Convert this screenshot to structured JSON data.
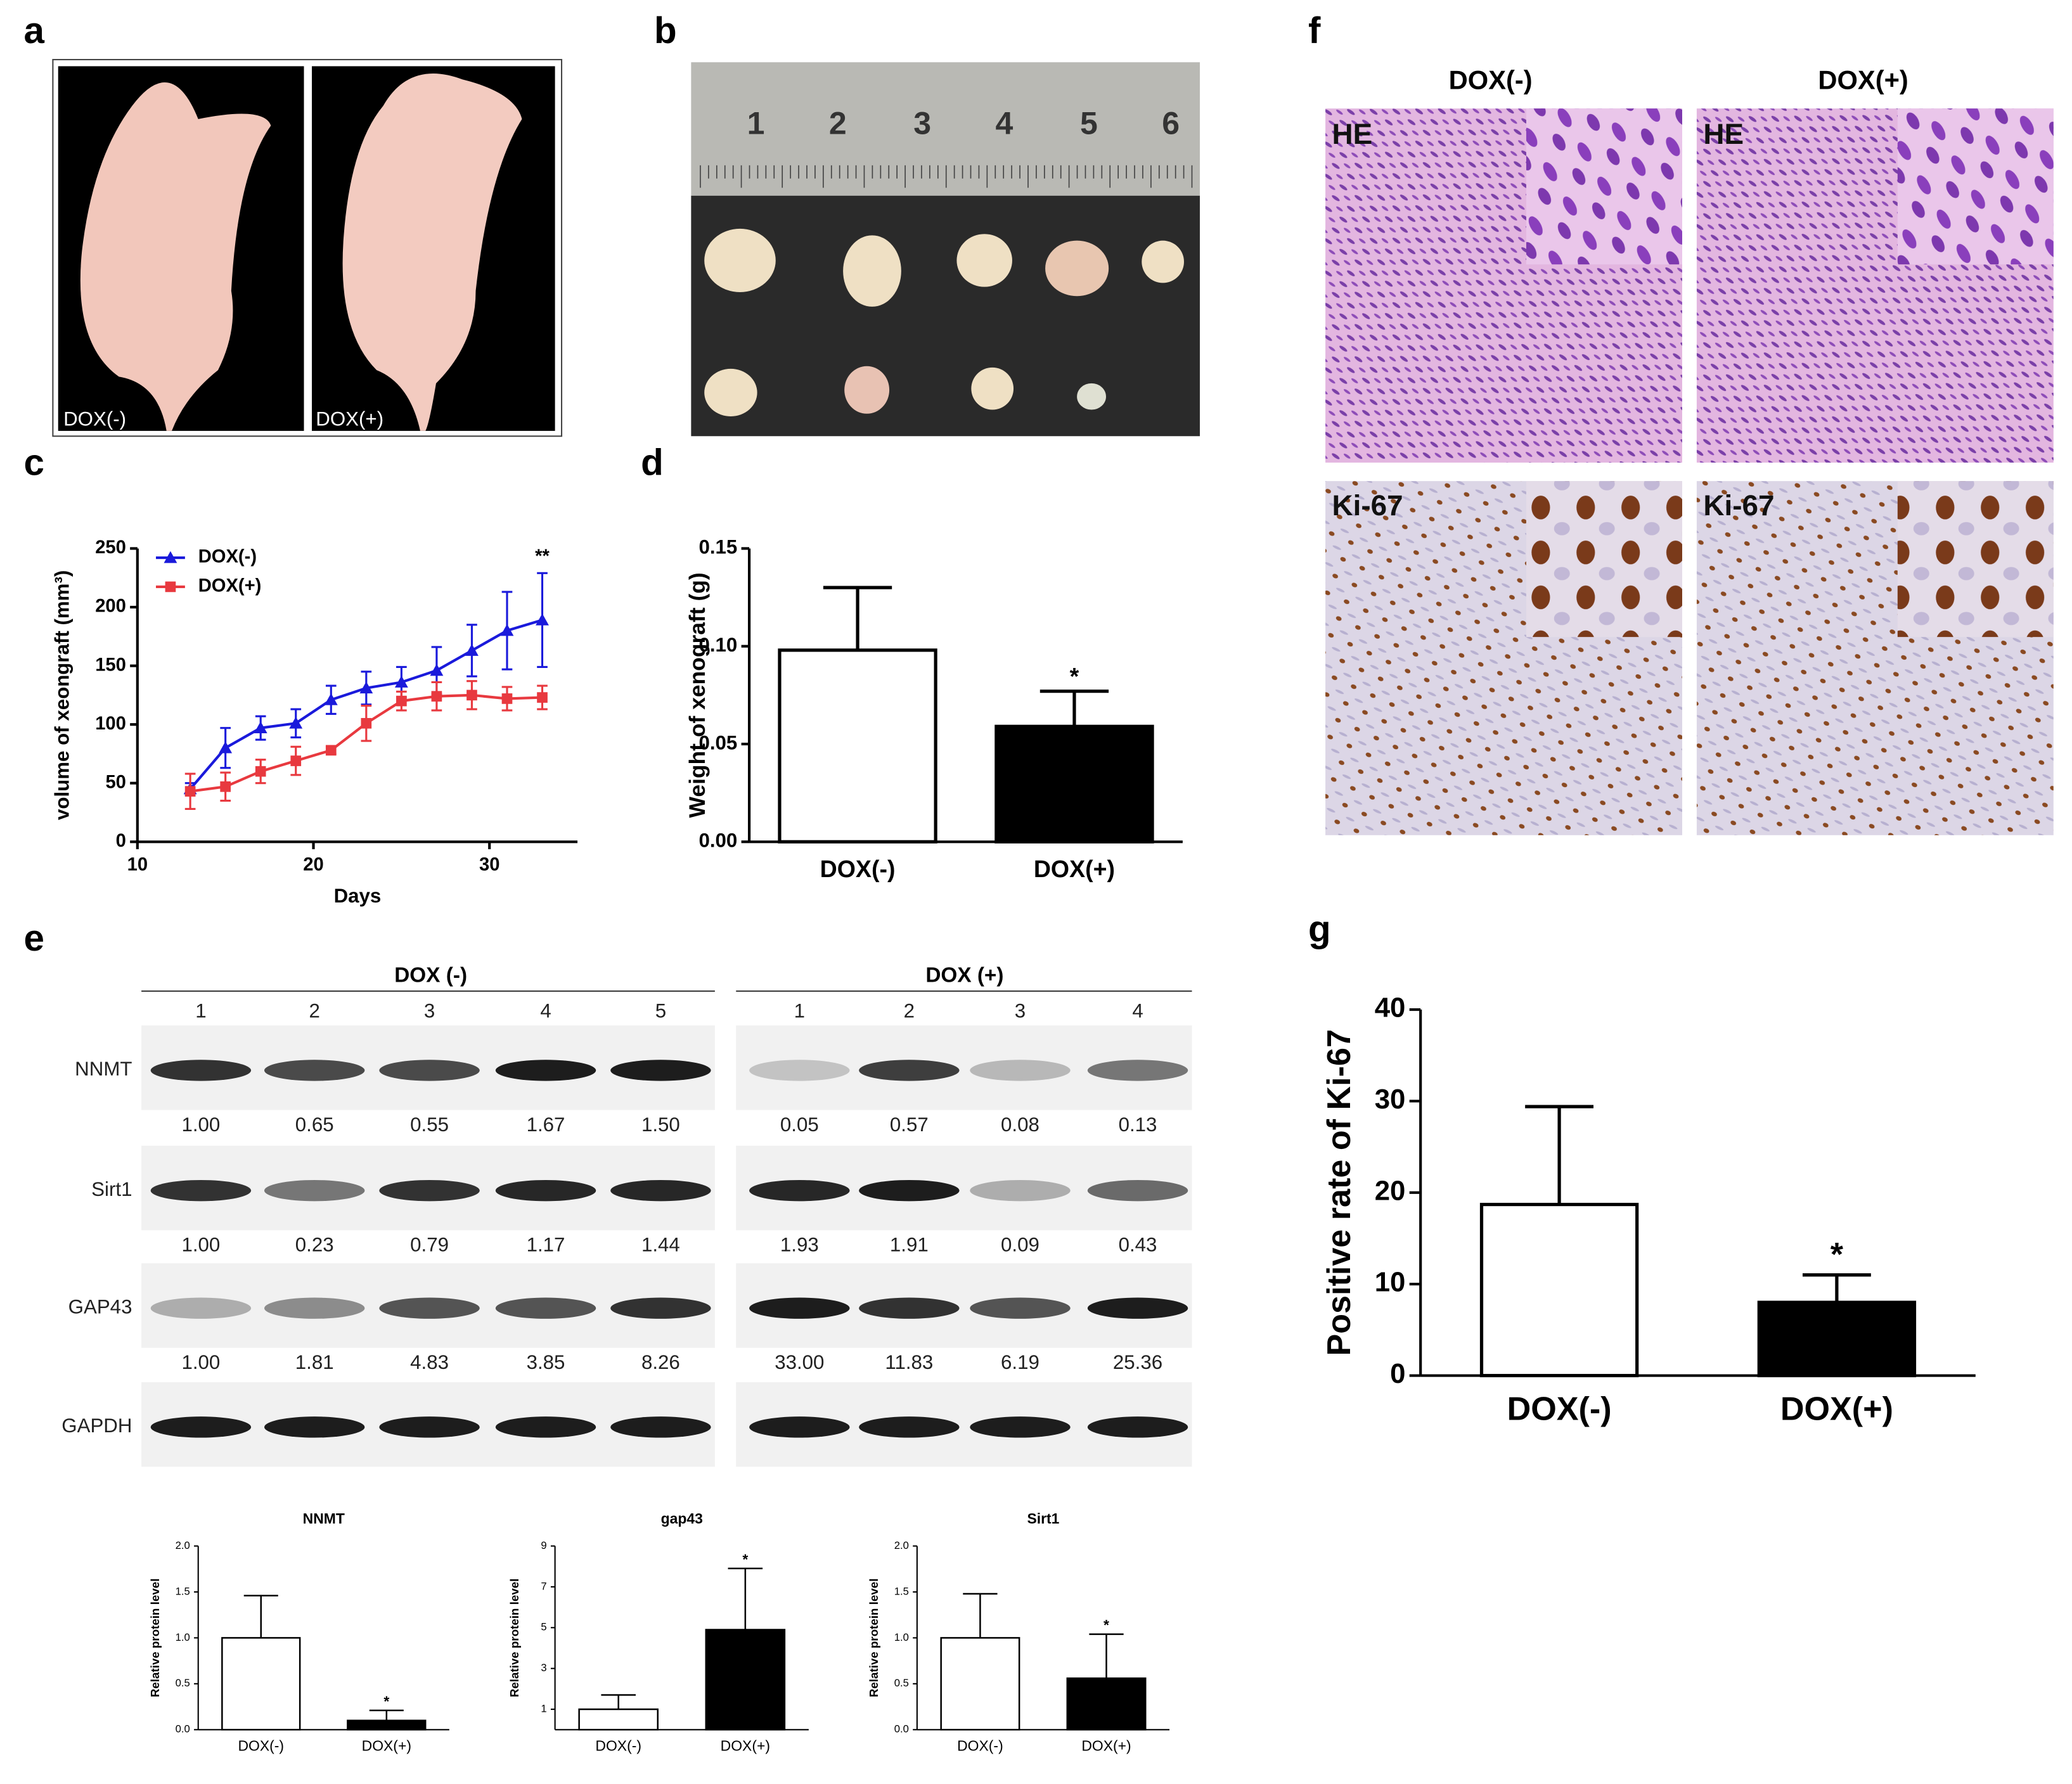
{
  "panel_labels": [
    "a",
    "b",
    "c",
    "d",
    "e",
    "f",
    "g"
  ],
  "panel_a": {
    "labels": [
      "DOX(-)",
      "DOX(+)"
    ]
  },
  "panel_b": {
    "ruler_labels": [
      "1",
      "2",
      "3",
      "4",
      "5",
      "6"
    ]
  },
  "panel_e_blot": {
    "groups": [
      "DOX (-)",
      "DOX (+)"
    ],
    "lanes": [
      "1",
      "2",
      "3",
      "4",
      "5",
      "1",
      "2",
      "3",
      "4"
    ],
    "rows": [
      {
        "label": "NNMT",
        "values": [
          "1.00",
          "0.65",
          "0.55",
          "1.67",
          "1.50",
          "0.05",
          "0.57",
          "0.08",
          "0.13"
        ]
      },
      {
        "label": "Sirt1",
        "values": [
          "1.00",
          "0.23",
          "0.79",
          "1.17",
          "1.44",
          "1.93",
          "1.91",
          "0.09",
          "0.43"
        ]
      },
      {
        "label": "GAP43",
        "values": [
          "1.00",
          "1.81",
          "4.83",
          "3.85",
          "8.26",
          "33.00",
          "11.83",
          "6.19",
          "25.36"
        ]
      },
      {
        "label": "GAPDH"
      }
    ]
  },
  "panel_f": {
    "columns": [
      "DOX(-)",
      "DOX(+)"
    ],
    "rows": [
      "HE",
      "Ki-67"
    ]
  },
  "chart_data": [
    {
      "type": "line",
      "x": [
        13,
        15,
        17,
        19,
        21,
        23,
        25,
        27,
        29,
        31,
        33
      ],
      "series": [
        {
          "name": "DOX(-)",
          "color": "#1a1adb",
          "marker": "triangle",
          "values": [
            45,
            80,
            97,
            101,
            121,
            131,
            136,
            146,
            163,
            180,
            189
          ],
          "errors": [
            5,
            17,
            10,
            12,
            12,
            14,
            13,
            20,
            22,
            33,
            40
          ]
        },
        {
          "name": "DOX(+)",
          "color": "#e8393f",
          "marker": "square",
          "values": [
            43,
            47,
            60,
            69,
            78,
            101,
            120,
            124,
            125,
            122,
            123
          ],
          "errors": [
            15,
            12,
            10,
            12,
            3,
            15,
            8,
            12,
            12,
            10,
            10
          ]
        }
      ],
      "xlim": [
        10,
        35
      ],
      "xticks": [
        10,
        20,
        30
      ],
      "ylim": [
        0,
        250
      ],
      "yticks": [
        0,
        50,
        100,
        150,
        200,
        250
      ],
      "x_label": "Days",
      "y_label": "volume of xeongraft (mm³)",
      "annotation": "**"
    },
    {
      "type": "bar",
      "categories": [
        "DOX(-)",
        "DOX(+)"
      ],
      "values": [
        0.098,
        0.059
      ],
      "errors": [
        0.032,
        0.018
      ],
      "colors": [
        "#ffffff",
        "#000000"
      ],
      "ylim": [
        0,
        0.15
      ],
      "yticks": [
        {
          "value": 0,
          "label": "0.00"
        },
        {
          "value": 0.05,
          "label": "0.05"
        },
        {
          "value": 0.1,
          "label": "0.10"
        },
        {
          "value": 0.15,
          "label": "0.15"
        }
      ],
      "y_label": "Weight of xenograft (g)",
      "annotation": "*"
    },
    {
      "type": "bar",
      "title": "NNMT",
      "categories": [
        "DOX(-)",
        "DOX(+)"
      ],
      "values": [
        1.0,
        0.1
      ],
      "errors": [
        0.46,
        0.11
      ],
      "colors": [
        "#ffffff",
        "#000000"
      ],
      "ylim": [
        0,
        2
      ],
      "yticks": [
        {
          "value": 0,
          "label": "0.0"
        },
        {
          "value": 0.5,
          "label": "0.5"
        },
        {
          "value": 1,
          "label": "1.0"
        },
        {
          "value": 1.5,
          "label": "1.5"
        },
        {
          "value": 2,
          "label": "2.0"
        }
      ],
      "y_label": "Relative protein level",
      "annotation": "*"
    },
    {
      "type": "bar",
      "title": "gap43",
      "categories": [
        "DOX(-)",
        "DOX(+)"
      ],
      "values": [
        1.0,
        4.9
      ],
      "errors": [
        0.7,
        3.0
      ],
      "colors": [
        "#ffffff",
        "#000000"
      ],
      "ylim": [
        0,
        9
      ],
      "yticks": [
        1,
        3,
        5,
        7,
        9
      ],
      "y_label": "Relative protein level",
      "annotation": "*"
    },
    {
      "type": "bar",
      "title": "Sirt1",
      "categories": [
        "DOX(-)",
        "DOX(+)"
      ],
      "values": [
        1.0,
        0.56
      ],
      "errors": [
        0.48,
        0.48
      ],
      "colors": [
        "#ffffff",
        "#000000"
      ],
      "ylim": [
        0,
        2
      ],
      "yticks": [
        {
          "value": 0,
          "label": "0.0"
        },
        {
          "value": 0.5,
          "label": "0.5"
        },
        {
          "value": 1,
          "label": "1.0"
        },
        {
          "value": 1.5,
          "label": "1.5"
        },
        {
          "value": 2,
          "label": "2.0"
        }
      ],
      "y_label": "Relative protein level",
      "annotation": "*"
    },
    {
      "type": "bar",
      "categories": [
        "DOX(-)",
        "DOX(+)"
      ],
      "values": [
        18.7,
        8.0
      ],
      "errors": [
        10.7,
        3.0
      ],
      "colors": [
        "#ffffff",
        "#000000"
      ],
      "ylim": [
        0,
        40
      ],
      "yticks": [
        0,
        10,
        20,
        30,
        40
      ],
      "y_label": "Positive rate of Ki-67",
      "annotation": "*"
    }
  ]
}
